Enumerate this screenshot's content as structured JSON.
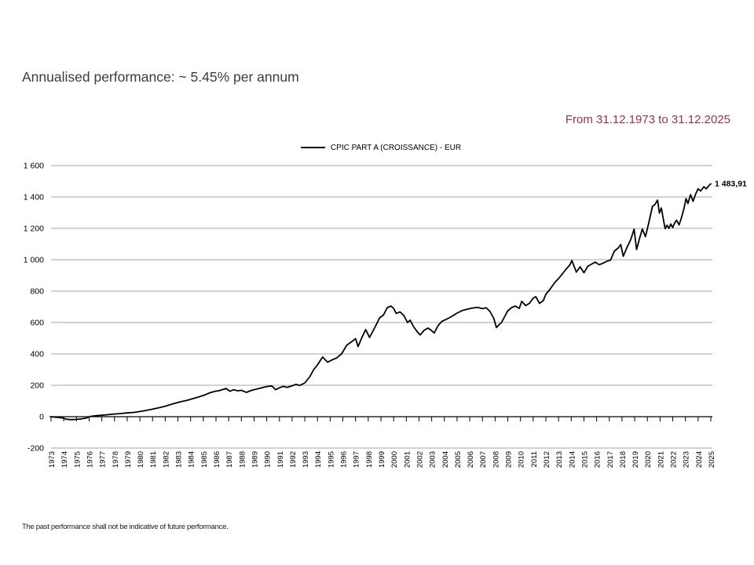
{
  "header": {
    "title": "Annualised performance: ~ 5.45% per annum",
    "date_range": "From 31.12.1973 to 31.12.2025"
  },
  "legend": {
    "series_label": "CPIC PART A (CROISSANCE) - EUR"
  },
  "footer": {
    "disclaimer": "The past performance shall not be indicative of future performance."
  },
  "colors": {
    "title": "#3c3c3c",
    "date_range": "#993347",
    "series_line": "#000000",
    "grid": "#a6a6a6",
    "axis": "#000000"
  },
  "chart_data": {
    "type": "line",
    "title": "",
    "series": [
      {
        "name": "CPIC PART A (CROISSANCE) - EUR",
        "color": "#000000"
      }
    ],
    "legend_position": "top-center",
    "grid": "horizontal",
    "x_start_year": 1973,
    "x_end_year": 2025,
    "xlabel": "",
    "ylabel": "",
    "ylim": [
      -200,
      1600
    ],
    "ytick_step": 200,
    "ytick_labels": [
      "-200",
      "0",
      "200",
      "400",
      "600",
      "800",
      "1 000",
      "1 200",
      "1 400",
      "1 600"
    ],
    "end_value": 1483.91,
    "end_value_label": "1 483,91",
    "points": [
      [
        1973.0,
        0
      ],
      [
        1973.3,
        -3
      ],
      [
        1973.6,
        -5
      ],
      [
        1973.9,
        -8
      ],
      [
        1974.2,
        -16
      ],
      [
        1974.6,
        -19
      ],
      [
        1975.0,
        -17
      ],
      [
        1975.4,
        -14
      ],
      [
        1975.8,
        -8
      ],
      [
        1976.1,
        2
      ],
      [
        1976.5,
        6
      ],
      [
        1977.0,
        9
      ],
      [
        1977.5,
        13
      ],
      [
        1978.0,
        17
      ],
      [
        1978.5,
        20
      ],
      [
        1979.0,
        24
      ],
      [
        1979.5,
        27
      ],
      [
        1980.0,
        33
      ],
      [
        1980.5,
        40
      ],
      [
        1981.0,
        48
      ],
      [
        1981.5,
        57
      ],
      [
        1982.0,
        67
      ],
      [
        1982.6,
        82
      ],
      [
        1983.2,
        95
      ],
      [
        1983.7,
        104
      ],
      [
        1984.1,
        113
      ],
      [
        1984.6,
        125
      ],
      [
        1985.1,
        138
      ],
      [
        1985.5,
        152
      ],
      [
        1985.9,
        161
      ],
      [
        1986.3,
        167
      ],
      [
        1986.8,
        180
      ],
      [
        1987.1,
        162
      ],
      [
        1987.4,
        172
      ],
      [
        1987.7,
        165
      ],
      [
        1988.0,
        168
      ],
      [
        1988.4,
        155
      ],
      [
        1988.7,
        165
      ],
      [
        1989.0,
        172
      ],
      [
        1989.4,
        180
      ],
      [
        1989.8,
        188
      ],
      [
        1990.1,
        193
      ],
      [
        1990.4,
        196
      ],
      [
        1990.7,
        172
      ],
      [
        1991.0,
        184
      ],
      [
        1991.3,
        193
      ],
      [
        1991.6,
        187
      ],
      [
        1992.0,
        197
      ],
      [
        1992.3,
        206
      ],
      [
        1992.6,
        199
      ],
      [
        1993.0,
        215
      ],
      [
        1993.4,
        255
      ],
      [
        1993.7,
        300
      ],
      [
        1994.0,
        330
      ],
      [
        1994.4,
        380
      ],
      [
        1994.8,
        347
      ],
      [
        1995.1,
        360
      ],
      [
        1995.5,
        374
      ],
      [
        1995.9,
        400
      ],
      [
        1996.3,
        455
      ],
      [
        1996.7,
        478
      ],
      [
        1997.0,
        497
      ],
      [
        1997.2,
        447
      ],
      [
        1997.5,
        505
      ],
      [
        1997.8,
        555
      ],
      [
        1998.1,
        505
      ],
      [
        1998.5,
        565
      ],
      [
        1998.9,
        630
      ],
      [
        1999.2,
        648
      ],
      [
        1999.5,
        695
      ],
      [
        1999.8,
        705
      ],
      [
        2000.0,
        690
      ],
      [
        2000.2,
        658
      ],
      [
        2000.5,
        668
      ],
      [
        2000.8,
        645
      ],
      [
        2001.1,
        600
      ],
      [
        2001.3,
        615
      ],
      [
        2001.6,
        570
      ],
      [
        2001.9,
        538
      ],
      [
        2002.1,
        521
      ],
      [
        2002.4,
        550
      ],
      [
        2002.7,
        565
      ],
      [
        2003.0,
        548
      ],
      [
        2003.2,
        533
      ],
      [
        2003.5,
        580
      ],
      [
        2003.8,
        607
      ],
      [
        2004.2,
        622
      ],
      [
        2004.6,
        640
      ],
      [
        2005.0,
        660
      ],
      [
        2005.4,
        676
      ],
      [
        2005.8,
        685
      ],
      [
        2006.2,
        692
      ],
      [
        2006.6,
        697
      ],
      [
        2007.0,
        689
      ],
      [
        2007.3,
        694
      ],
      [
        2007.6,
        670
      ],
      [
        2007.9,
        625
      ],
      [
        2008.1,
        568
      ],
      [
        2008.3,
        585
      ],
      [
        2008.5,
        600
      ],
      [
        2008.8,
        645
      ],
      [
        2009.0,
        675
      ],
      [
        2009.3,
        695
      ],
      [
        2009.6,
        705
      ],
      [
        2009.9,
        690
      ],
      [
        2010.1,
        735
      ],
      [
        2010.4,
        708
      ],
      [
        2010.7,
        722
      ],
      [
        2011.0,
        755
      ],
      [
        2011.2,
        765
      ],
      [
        2011.5,
        722
      ],
      [
        2011.8,
        740
      ],
      [
        2012.0,
        780
      ],
      [
        2012.35,
        815
      ],
      [
        2012.7,
        855
      ],
      [
        2013.0,
        880
      ],
      [
        2013.3,
        910
      ],
      [
        2013.6,
        940
      ],
      [
        2013.9,
        968
      ],
      [
        2014.05,
        995
      ],
      [
        2014.4,
        921
      ],
      [
        2014.7,
        955
      ],
      [
        2015.0,
        917
      ],
      [
        2015.3,
        958
      ],
      [
        2015.6,
        972
      ],
      [
        2015.9,
        985
      ],
      [
        2016.2,
        968
      ],
      [
        2016.5,
        978
      ],
      [
        2016.8,
        990
      ],
      [
        2017.1,
        998
      ],
      [
        2017.4,
        1055
      ],
      [
        2017.7,
        1075
      ],
      [
        2017.9,
        1097
      ],
      [
        2018.1,
        1022
      ],
      [
        2018.4,
        1080
      ],
      [
        2018.7,
        1130
      ],
      [
        2018.95,
        1195
      ],
      [
        2019.15,
        1065
      ],
      [
        2019.4,
        1140
      ],
      [
        2019.6,
        1196
      ],
      [
        2019.85,
        1147
      ],
      [
        2020.1,
        1230
      ],
      [
        2020.4,
        1340
      ],
      [
        2020.6,
        1352
      ],
      [
        2020.8,
        1380
      ],
      [
        2020.95,
        1297
      ],
      [
        2021.1,
        1330
      ],
      [
        2021.4,
        1198
      ],
      [
        2021.55,
        1220
      ],
      [
        2021.7,
        1200
      ],
      [
        2021.85,
        1228
      ],
      [
        2022.0,
        1205
      ],
      [
        2022.15,
        1235
      ],
      [
        2022.3,
        1252
      ],
      [
        2022.5,
        1222
      ],
      [
        2022.7,
        1270
      ],
      [
        2022.9,
        1332
      ],
      [
        2023.05,
        1390
      ],
      [
        2023.2,
        1358
      ],
      [
        2023.4,
        1415
      ],
      [
        2023.6,
        1372
      ],
      [
        2023.8,
        1418
      ],
      [
        2024.0,
        1452
      ],
      [
        2024.2,
        1438
      ],
      [
        2024.45,
        1465
      ],
      [
        2024.65,
        1452
      ],
      [
        2024.8,
        1468
      ],
      [
        2025.0,
        1483.91
      ]
    ]
  }
}
